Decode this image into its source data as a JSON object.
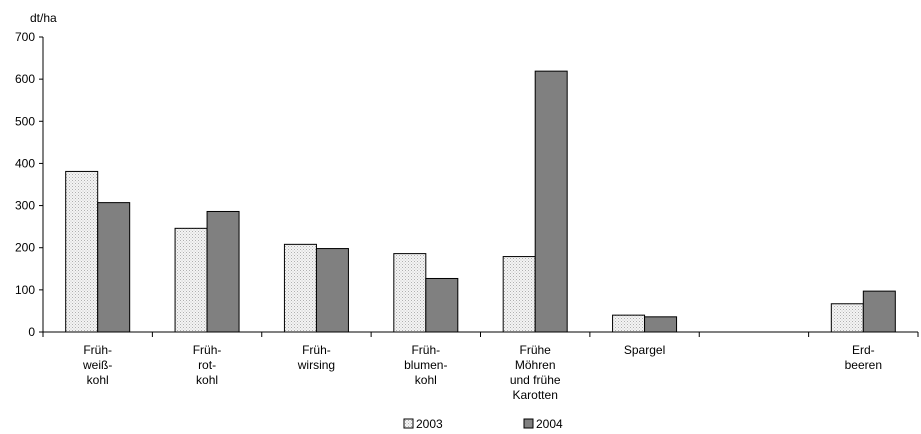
{
  "chart_data": {
    "type": "bar",
    "title": "",
    "ylabel": "dt/ha",
    "xlabel": "",
    "ylim": [
      0,
      700
    ],
    "yticks": [
      "0",
      "100",
      "200",
      "300",
      "400",
      "500",
      "600",
      "700"
    ],
    "categories": [
      [
        "Früh-",
        "weiß-",
        "kohl"
      ],
      [
        "Früh-",
        "rot-",
        "kohl"
      ],
      [
        "Früh-",
        "wirsing"
      ],
      [
        "Früh-",
        "blumen-",
        "kohl"
      ],
      [
        "Frühe",
        "Möhren",
        "und frühe",
        "Karotten"
      ],
      [
        "Spargel"
      ],
      [],
      [
        "Erd-",
        "beeren"
      ]
    ],
    "series": [
      {
        "name": "2003",
        "color": "#ececec",
        "pattern": "dotted-light",
        "values": [
          381,
          246,
          208,
          186,
          179,
          40,
          null,
          67
        ]
      },
      {
        "name": "2004",
        "color": "#808080",
        "pattern": "solid-gray",
        "values": [
          307,
          286,
          198,
          127,
          619,
          36,
          null,
          97
        ]
      }
    ],
    "grid": false,
    "legend_position": "bottom-center"
  }
}
